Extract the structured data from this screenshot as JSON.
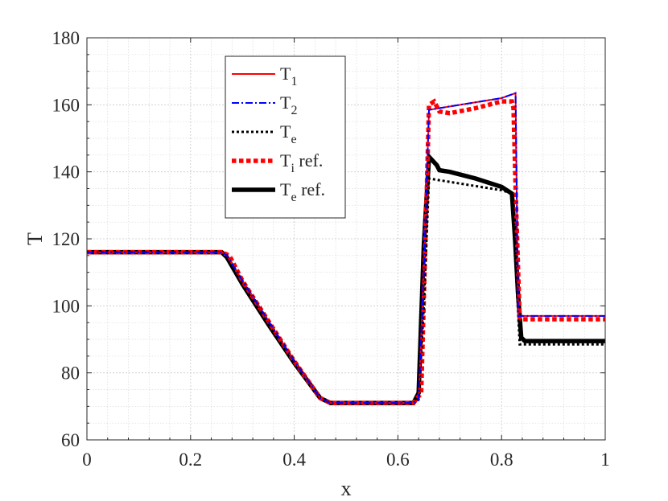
{
  "chart_data": {
    "type": "line",
    "xlabel": "x",
    "ylabel": "T",
    "xlim": [
      0,
      1
    ],
    "ylim": [
      60,
      180
    ],
    "xticks": [
      0,
      0.2,
      0.4,
      0.6,
      0.8,
      1
    ],
    "xtick_labels": [
      "0",
      "0.2",
      "0.4",
      "0.6",
      "0.8",
      "1"
    ],
    "yticks": [
      60,
      80,
      100,
      120,
      140,
      160,
      180
    ],
    "ytick_labels": [
      "60",
      "80",
      "100",
      "120",
      "140",
      "160",
      "180"
    ],
    "grid": true,
    "minor_grid": true,
    "legend_position": "top-center",
    "series": [
      {
        "name": "T1",
        "legend_base": "T",
        "legend_sub": "1",
        "legend_suffix": "",
        "color": "#ff0000",
        "style": "solid",
        "x": [
          0,
          0.26,
          0.27,
          0.3,
          0.35,
          0.4,
          0.45,
          0.47,
          0.6,
          0.63,
          0.64,
          0.65,
          0.66,
          0.7,
          0.8,
          0.827,
          0.832,
          0.84,
          1
        ],
        "y": [
          116,
          116,
          115,
          107.5,
          95.5,
          83.5,
          72.5,
          71,
          71,
          71,
          72,
          110,
          158.5,
          159.5,
          162,
          163.5,
          97,
          97,
          97
        ]
      },
      {
        "name": "T2",
        "legend_base": "T",
        "legend_sub": "2",
        "legend_suffix": "",
        "color": "#0000ff",
        "style": "dashdot",
        "x": [
          0,
          0.26,
          0.27,
          0.3,
          0.35,
          0.4,
          0.45,
          0.47,
          0.6,
          0.63,
          0.64,
          0.65,
          0.66,
          0.7,
          0.8,
          0.827,
          0.832,
          0.84,
          1
        ],
        "y": [
          116,
          116,
          115,
          107.5,
          95.5,
          83.5,
          72.5,
          71,
          71,
          71,
          72,
          110,
          158.5,
          159.5,
          162,
          163.5,
          97,
          97,
          97
        ]
      },
      {
        "name": "Te",
        "legend_base": "T",
        "legend_sub": "e",
        "legend_suffix": "",
        "color": "#000000",
        "style": "dotted",
        "x": [
          0,
          0.26,
          0.27,
          0.3,
          0.35,
          0.4,
          0.45,
          0.47,
          0.6,
          0.63,
          0.64,
          0.65,
          0.66,
          0.7,
          0.8,
          0.822,
          0.828,
          0.835,
          1
        ],
        "y": [
          116,
          116,
          115,
          107.5,
          95.5,
          83.5,
          72.5,
          71,
          71,
          71,
          72,
          100,
          138,
          137,
          134.5,
          133.5,
          110,
          88.5,
          88.5
        ]
      },
      {
        "name": "Ti ref.",
        "legend_base": "T",
        "legend_sub": "i",
        "legend_suffix": " ref.",
        "color": "#ff0000",
        "style": "dotted-thick",
        "x": [
          0,
          0.26,
          0.275,
          0.3,
          0.35,
          0.4,
          0.45,
          0.47,
          0.6,
          0.63,
          0.645,
          0.655,
          0.66,
          0.67,
          0.68,
          0.7,
          0.75,
          0.8,
          0.82,
          0.823,
          0.828,
          0.835,
          0.84,
          1
        ],
        "y": [
          116,
          116,
          115,
          107.5,
          95.5,
          83.5,
          72.5,
          71,
          71,
          71,
          74,
          130,
          160,
          161,
          158,
          157.5,
          159,
          161,
          161,
          159,
          130,
          96,
          96,
          96
        ]
      },
      {
        "name": "Te ref.",
        "legend_base": "T",
        "legend_sub": "e",
        "legend_suffix": " ref.",
        "color": "#000000",
        "style": "solid-thick",
        "x": [
          0,
          0.25,
          0.26,
          0.27,
          0.3,
          0.35,
          0.4,
          0.45,
          0.47,
          0.6,
          0.63,
          0.64,
          0.65,
          0.66,
          0.675,
          0.68,
          0.7,
          0.75,
          0.8,
          0.82,
          0.826,
          0.832,
          0.838,
          0.845,
          1
        ],
        "y": [
          116,
          116,
          116,
          114.5,
          106.5,
          94.5,
          83,
          72.5,
          71,
          71,
          71,
          74,
          118,
          144.5,
          142,
          140.5,
          140,
          138,
          135.5,
          133.5,
          120,
          103,
          90.5,
          89.5,
          89.5
        ]
      }
    ]
  }
}
